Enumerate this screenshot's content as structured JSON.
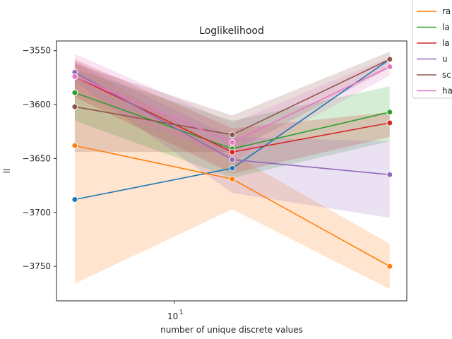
{
  "chart_data": {
    "type": "line",
    "title": "Loglikelihood",
    "xlabel": "number of unique discrete values",
    "ylabel": "ll",
    "x_scale": "log",
    "x": [
      5,
      15,
      45
    ],
    "xlim": [
      4.4,
      50.7
    ],
    "ylim": [
      -3782,
      -3541
    ],
    "y_ticks": [
      -3550,
      -3600,
      -3650,
      -3700,
      -3750
    ],
    "y_tick_labels": [
      "−3550",
      "−3600",
      "−3650",
      "−3700",
      "−3750"
    ],
    "x_ticks": [
      {
        "value": 10,
        "label": "10",
        "exp": "1"
      }
    ],
    "grid": false,
    "legend": {
      "placement": "upper-right-outside",
      "clipped": true
    },
    "series": [
      {
        "name": "",
        "color": "#1f77b4",
        "values": [
          -3688,
          -3659,
          -3558
        ],
        "band_low": null,
        "band_high": null
      },
      {
        "name": "ra",
        "color": "#ff7f0e",
        "values": [
          -3638,
          -3669,
          -3750
        ],
        "band_low": [
          -3766,
          -3697,
          -3771
        ],
        "band_high": [
          -3560,
          -3646,
          -3729
        ]
      },
      {
        "name": "la",
        "color": "#2ca02c",
        "values": [
          -3589,
          -3641,
          -3607
        ],
        "band_low": [
          -3615,
          -3668,
          -3634
        ],
        "band_high": [
          -3567,
          -3615,
          -3583
        ]
      },
      {
        "name": "la",
        "color": "#d62728",
        "values": [
          -3574,
          -3644,
          -3617
        ],
        "band_low": [
          -3593,
          -3664,
          -3630
        ],
        "band_high": [
          -3558,
          -3622,
          -3607
        ]
      },
      {
        "name": "u",
        "color": "#9467bd",
        "values": [
          -3570,
          -3651,
          -3665
        ],
        "band_low": [
          -3579,
          -3682,
          -3705
        ],
        "band_high": [
          -3560,
          -3630,
          -3634
        ]
      },
      {
        "name": "sc",
        "color": "#8c564b",
        "values": [
          -3602,
          -3628,
          -3558
        ],
        "band_low": [
          -3644,
          -3644,
          -3566
        ],
        "band_high": [
          -3562,
          -3610,
          -3551
        ]
      },
      {
        "name": "ha",
        "color": "#e377c2",
        "values": [
          -3574,
          -3635,
          -3565
        ],
        "band_low": [
          -3591,
          -3652,
          -3573
        ],
        "band_high": [
          -3553,
          -3617,
          -3556
        ]
      }
    ]
  }
}
